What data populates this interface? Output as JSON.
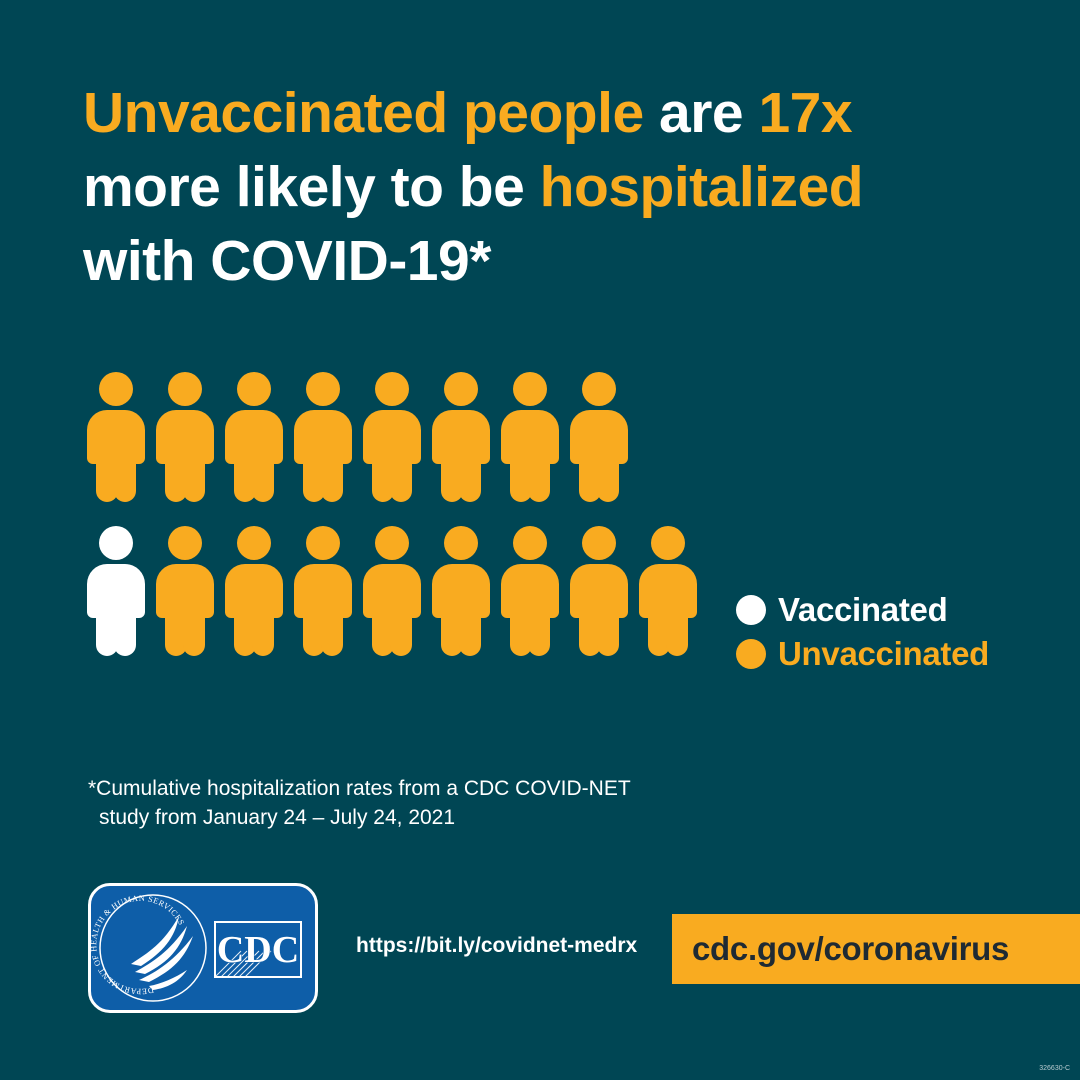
{
  "headline": {
    "line1": {
      "part1": "Unvaccinated people",
      "part2": " are ",
      "part3": "17x"
    },
    "line2": {
      "part1": "more likely to be ",
      "part2": "hospitalized"
    },
    "line3": {
      "part1": "with COVID-19*"
    }
  },
  "pictograph": {
    "vaccinated_count": 1,
    "unvaccinated_count": 16,
    "colors": {
      "vaccinated": "#ffffff",
      "unvaccinated": "#F9AB20"
    }
  },
  "legend": {
    "items": [
      {
        "label": "Vaccinated",
        "color": "#ffffff"
      },
      {
        "label": "Unvaccinated",
        "color": "#F9AB20"
      }
    ]
  },
  "footnote": {
    "line1": "*Cumulative hospitalization rates from a CDC COVID-NET",
    "line2": "study from January 24 – July 24, 2021"
  },
  "logo": {
    "text": "CDC",
    "seal_text": "DEPARTMENT OF HEALTH & HUMAN SERVICES·USA"
  },
  "shortlink": "https://bit.ly/covidnet-medrx",
  "cta": "cdc.gov/coronavirus",
  "code": "326630-C",
  "colors": {
    "background": "#004654",
    "accent": "#F9AB20",
    "logo_blue": "#0E5EA8"
  }
}
